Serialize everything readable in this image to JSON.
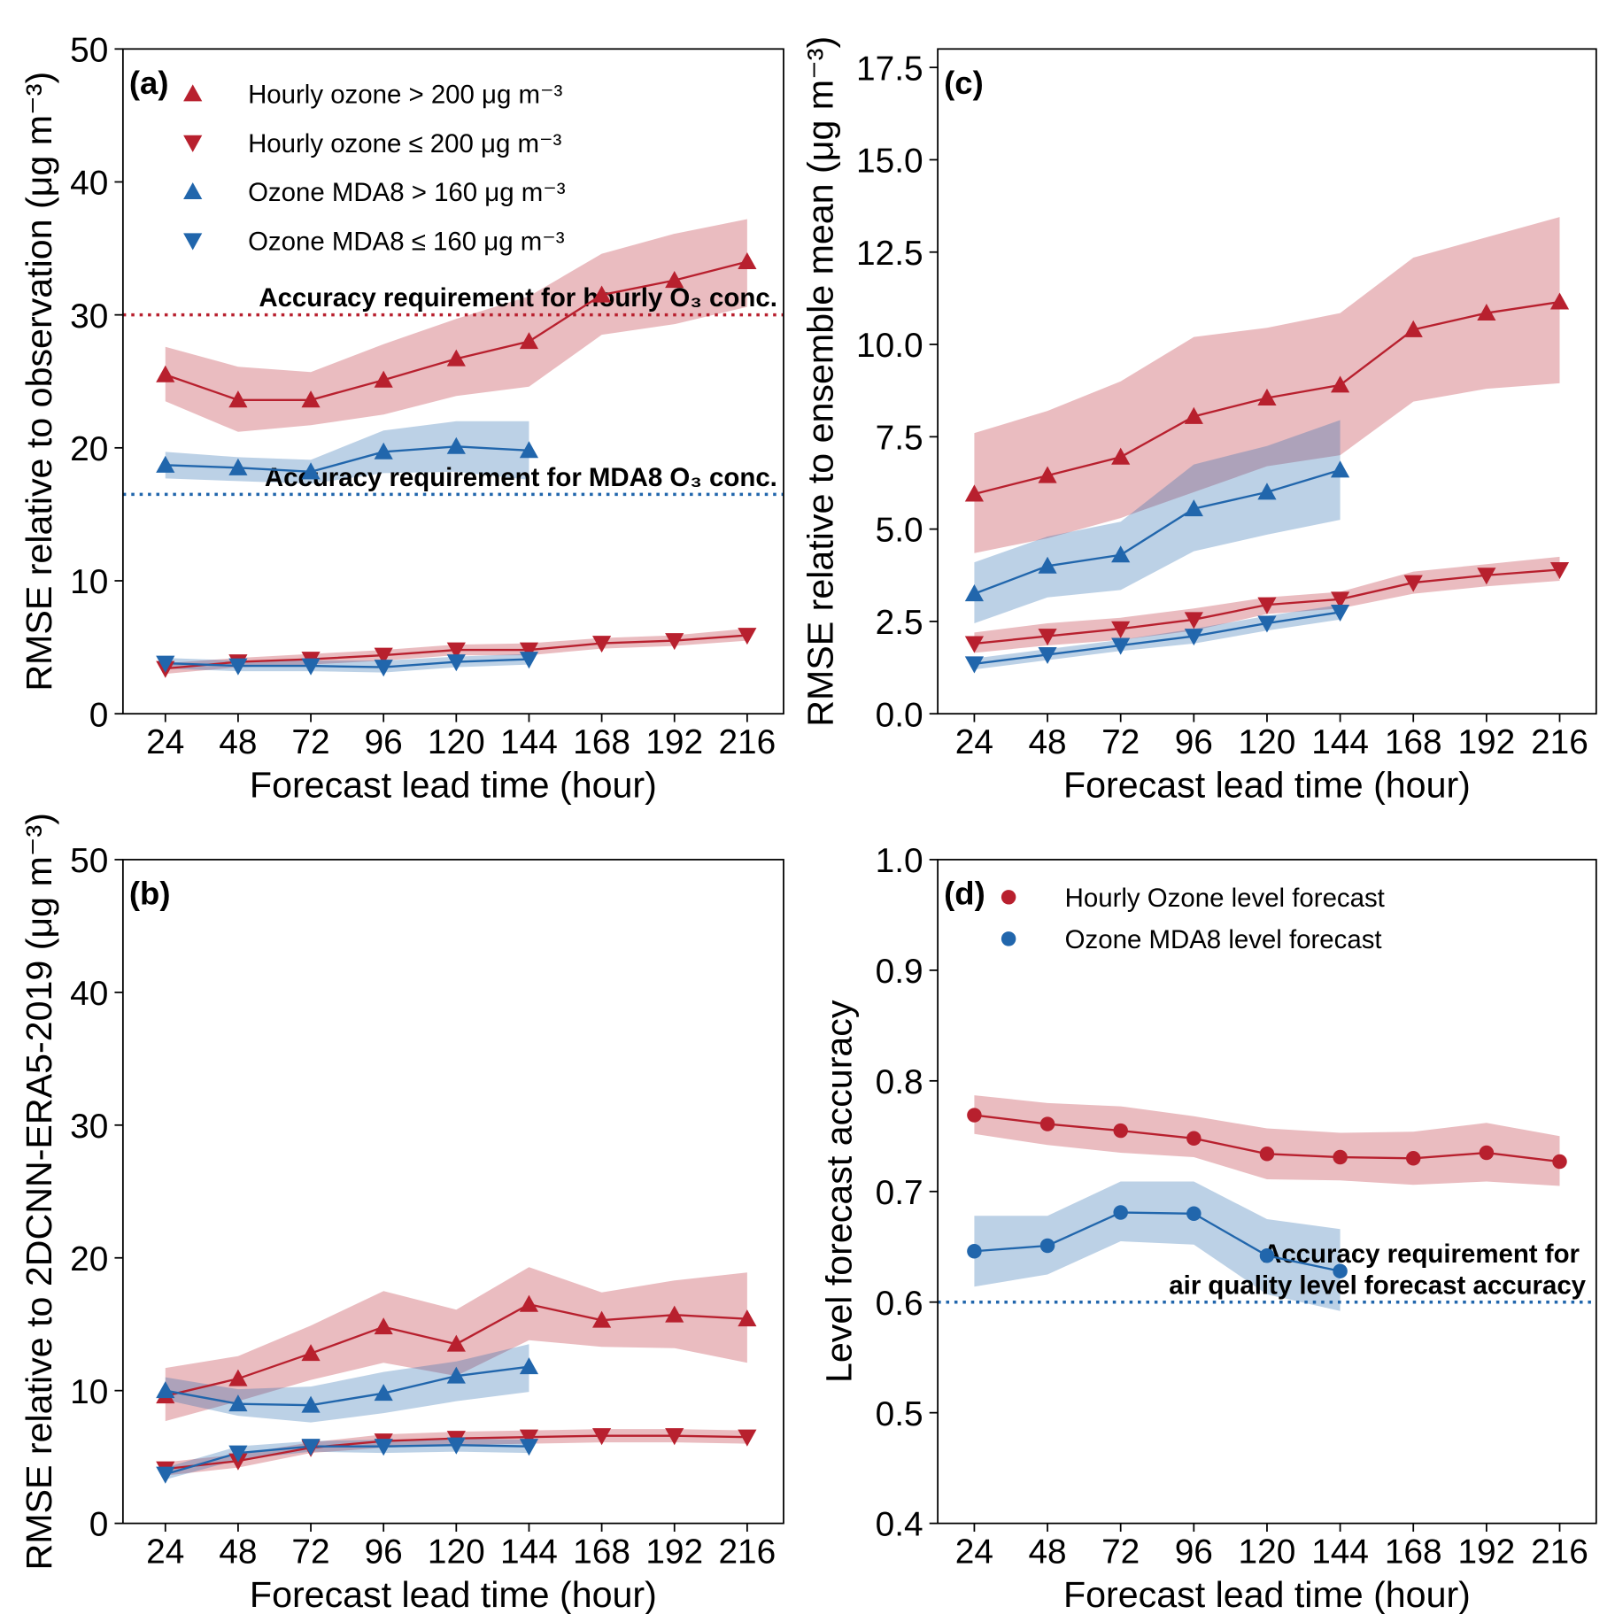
{
  "chart_data": [
    {
      "type": "line",
      "panel_label": "(a)",
      "ylabel": "RMSE relative to observation (μg m⁻³)",
      "xlabel": "Forecast lead time (hour)",
      "x": [
        24,
        48,
        72,
        96,
        120,
        144,
        168,
        192,
        216
      ],
      "xlim": [
        10,
        228
      ],
      "ylim": [
        0,
        50
      ],
      "xticks": [
        24,
        48,
        72,
        96,
        120,
        144,
        168,
        192,
        216
      ],
      "yticks": [
        0,
        10,
        20,
        30,
        40,
        50
      ],
      "legend": "upper left",
      "series": [
        {
          "name": "Hourly ozone > 200 μg m⁻³",
          "color": "#b8202e",
          "marker": "triangle-up",
          "values": [
            25.5,
            23.6,
            23.6,
            25.1,
            26.7,
            28.0,
            31.5,
            32.6,
            34.0
          ],
          "upper": [
            27.6,
            26.1,
            25.7,
            27.8,
            29.7,
            31.4,
            34.6,
            36.1,
            37.2
          ],
          "lower": [
            23.5,
            21.2,
            21.7,
            22.5,
            23.9,
            24.6,
            28.5,
            29.3,
            30.6
          ]
        },
        {
          "name": "Hourly ozone ≤ 200 μg m⁻³",
          "color": "#b8202e",
          "marker": "triangle-down",
          "values": [
            3.4,
            3.9,
            4.1,
            4.4,
            4.8,
            4.8,
            5.3,
            5.5,
            5.9
          ],
          "upper": [
            3.8,
            4.2,
            4.5,
            4.8,
            5.2,
            5.3,
            5.7,
            5.9,
            6.4
          ],
          "lower": [
            3.0,
            3.5,
            3.7,
            4.0,
            4.4,
            4.4,
            4.9,
            5.1,
            5.5
          ]
        },
        {
          "name": "Ozone MDA8 > 160 μg m⁻³",
          "color": "#2166ac",
          "marker": "triangle-up",
          "values": [
            18.7,
            18.5,
            18.2,
            19.7,
            20.1,
            19.8,
            null,
            null,
            null
          ],
          "upper": [
            19.7,
            19.3,
            19.1,
            21.3,
            22.0,
            22.0,
            null,
            null,
            null
          ],
          "lower": [
            17.7,
            17.5,
            17.3,
            18.1,
            18.2,
            17.6,
            null,
            null,
            null
          ]
        },
        {
          "name": "Ozone MDA8 ≤ 160 μg m⁻³",
          "color": "#2166ac",
          "marker": "triangle-down",
          "values": [
            3.8,
            3.6,
            3.6,
            3.5,
            3.9,
            4.1,
            null,
            null,
            null
          ],
          "upper": [
            4.2,
            4.0,
            4.0,
            4.0,
            4.3,
            4.5,
            null,
            null,
            null
          ],
          "lower": [
            3.4,
            3.2,
            3.2,
            3.1,
            3.5,
            3.7,
            null,
            null,
            null
          ]
        }
      ],
      "hlines": [
        {
          "value": 30,
          "color": "#b8202e",
          "label": [
            "Accuracy requirement for hourly O₃ conc."
          ]
        },
        {
          "value": 16.5,
          "color": "#2166ac",
          "label": [
            "Accuracy requirement for MDA8 O₃ conc."
          ]
        }
      ]
    },
    {
      "type": "line",
      "panel_label": "(b)",
      "ylabel": "RMSE relative to 2DCNN-ERA5-2019 (μg m⁻³)",
      "xlabel": "Forecast lead time (hour)",
      "x": [
        24,
        48,
        72,
        96,
        120,
        144,
        168,
        192,
        216
      ],
      "xlim": [
        10,
        228
      ],
      "ylim": [
        0,
        50
      ],
      "xticks": [
        24,
        48,
        72,
        96,
        120,
        144,
        168,
        192,
        216
      ],
      "yticks": [
        0,
        10,
        20,
        30,
        40,
        50
      ],
      "series": [
        {
          "color": "#b8202e",
          "marker": "triangle-up",
          "values": [
            9.6,
            10.9,
            12.8,
            14.8,
            13.5,
            16.5,
            15.3,
            15.7,
            15.4
          ],
          "upper": [
            11.7,
            12.6,
            14.9,
            17.5,
            16.1,
            19.3,
            17.4,
            18.3,
            18.9
          ],
          "lower": [
            7.7,
            9.2,
            10.8,
            12.1,
            11.1,
            13.8,
            13.3,
            13.2,
            12.1
          ]
        },
        {
          "color": "#b8202e",
          "marker": "triangle-down",
          "values": [
            4.1,
            4.7,
            5.7,
            6.2,
            6.4,
            6.5,
            6.6,
            6.6,
            6.5
          ],
          "upper": [
            4.6,
            5.2,
            6.1,
            6.7,
            6.9,
            7.0,
            7.1,
            7.1,
            7.0
          ],
          "lower": [
            3.6,
            4.2,
            5.3,
            5.7,
            5.9,
            6.0,
            6.1,
            6.1,
            6.0
          ]
        },
        {
          "color": "#2166ac",
          "marker": "triangle-up",
          "values": [
            10.0,
            9.0,
            8.9,
            9.8,
            11.1,
            11.8,
            null,
            null,
            null
          ],
          "upper": [
            11.0,
            10.1,
            10.3,
            11.4,
            12.2,
            13.5,
            null,
            null,
            null
          ],
          "lower": [
            9.3,
            8.1,
            7.6,
            8.3,
            9.2,
            9.9,
            null,
            null,
            null
          ]
        },
        {
          "color": "#2166ac",
          "marker": "triangle-down",
          "values": [
            3.7,
            5.3,
            5.8,
            5.8,
            5.9,
            5.8,
            null,
            null,
            null
          ],
          "upper": [
            4.2,
            5.8,
            6.2,
            6.3,
            6.4,
            6.3,
            null,
            null,
            null
          ],
          "lower": [
            3.3,
            4.8,
            5.4,
            5.3,
            5.4,
            5.3,
            null,
            null,
            null
          ]
        }
      ],
      "hlines": []
    },
    {
      "type": "line",
      "panel_label": "(c)",
      "ylabel": "RMSE relative to ensemble mean (μg m⁻³)",
      "xlabel": "Forecast lead time (hour)",
      "x": [
        24,
        48,
        72,
        96,
        120,
        144,
        168,
        192,
        216
      ],
      "xlim": [
        12,
        228
      ],
      "ylim": [
        0,
        18
      ],
      "xticks": [
        24,
        48,
        72,
        96,
        120,
        144,
        168,
        192,
        216
      ],
      "yticks": [
        {
          "value": 0,
          "label": "0.0"
        },
        2.5,
        {
          "value": 5,
          "label": "5.0"
        },
        7.5,
        {
          "value": 10,
          "label": "10.0"
        },
        12.5,
        {
          "value": 15,
          "label": "15.0"
        },
        17.5
      ],
      "series": [
        {
          "color": "#b8202e",
          "marker": "triangle-up",
          "values": [
            5.95,
            6.45,
            6.95,
            8.05,
            8.55,
            8.9,
            10.4,
            10.85,
            11.15
          ],
          "upper": [
            7.6,
            8.2,
            9.0,
            10.2,
            10.45,
            10.85,
            12.35,
            12.9,
            13.45
          ],
          "lower": [
            4.35,
            4.75,
            5.3,
            6.0,
            6.7,
            7.0,
            8.45,
            8.8,
            8.95
          ]
        },
        {
          "color": "#b8202e",
          "marker": "triangle-down",
          "values": [
            1.9,
            2.1,
            2.3,
            2.55,
            2.95,
            3.1,
            3.55,
            3.75,
            3.9
          ],
          "upper": [
            2.2,
            2.45,
            2.6,
            2.85,
            3.15,
            3.3,
            3.85,
            4.05,
            4.25
          ],
          "lower": [
            1.65,
            1.85,
            2.0,
            2.25,
            2.7,
            2.85,
            3.25,
            3.45,
            3.6
          ]
        },
        {
          "color": "#2166ac",
          "marker": "triangle-up",
          "values": [
            3.25,
            4.0,
            4.3,
            5.55,
            6.0,
            6.6,
            null,
            null,
            null
          ],
          "upper": [
            4.1,
            4.8,
            5.2,
            6.75,
            7.25,
            7.95,
            null,
            null,
            null
          ],
          "lower": [
            2.45,
            3.15,
            3.35,
            4.4,
            4.85,
            5.25,
            null,
            null,
            null
          ]
        },
        {
          "color": "#2166ac",
          "marker": "triangle-down",
          "values": [
            1.35,
            1.6,
            1.85,
            2.1,
            2.45,
            2.75,
            null,
            null,
            null
          ],
          "upper": [
            1.5,
            1.75,
            2.0,
            2.3,
            2.65,
            2.95,
            null,
            null,
            null
          ],
          "lower": [
            1.2,
            1.45,
            1.7,
            1.9,
            2.25,
            2.55,
            null,
            null,
            null
          ]
        }
      ],
      "hlines": []
    },
    {
      "type": "line",
      "panel_label": "(d)",
      "ylabel": "Level forecast accuracy",
      "xlabel": "Forecast lead time (hour)",
      "x": [
        24,
        48,
        72,
        96,
        120,
        144,
        168,
        192,
        216
      ],
      "xlim": [
        12,
        228
      ],
      "ylim": [
        0.4,
        1.0
      ],
      "xticks": [
        24,
        48,
        72,
        96,
        120,
        144,
        168,
        192,
        216
      ],
      "yticks": [
        0.4,
        0.5,
        0.6,
        0.7,
        0.8,
        0.9,
        {
          "value": 1.0,
          "label": "1.0"
        }
      ],
      "legend": "upper left",
      "series": [
        {
          "name": "Hourly Ozone level forecast",
          "color": "#b8202e",
          "marker": "circle",
          "values": [
            0.769,
            0.761,
            0.755,
            0.748,
            0.734,
            0.731,
            0.73,
            0.735,
            0.727
          ],
          "upper": [
            0.787,
            0.78,
            0.777,
            0.768,
            0.757,
            0.753,
            0.754,
            0.762,
            0.75
          ],
          "lower": [
            0.752,
            0.742,
            0.735,
            0.731,
            0.711,
            0.71,
            0.706,
            0.709,
            0.705
          ]
        },
        {
          "name": "Ozone MDA8 level forecast",
          "color": "#2166ac",
          "marker": "circle",
          "values": [
            0.646,
            0.651,
            0.681,
            0.68,
            0.642,
            0.628,
            null,
            null,
            null
          ],
          "upper": [
            0.678,
            0.678,
            0.709,
            0.709,
            0.675,
            0.666,
            null,
            null,
            null
          ],
          "lower": [
            0.614,
            0.625,
            0.655,
            0.652,
            0.607,
            0.592,
            null,
            null,
            null
          ]
        }
      ],
      "hlines": [
        {
          "value": 0.6,
          "color": "#2166ac",
          "label": [
            "Accuracy requirement for",
            "air quality level forecast accuracy"
          ]
        }
      ]
    }
  ]
}
